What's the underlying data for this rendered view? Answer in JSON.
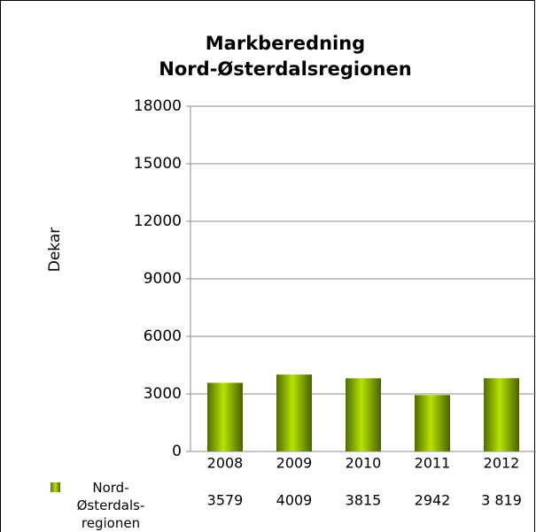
{
  "chart_data": {
    "type": "bar",
    "title": [
      "Markberedning",
      "Nord-Østerdalsregionen"
    ],
    "y_label": "Dekar",
    "categories": [
      "2008",
      "2009",
      "2010",
      "2011",
      "2012"
    ],
    "series": [
      {
        "name": "Nord-Østerdals-regionen",
        "color": "#8db600",
        "values": [
          3579,
          4009,
          3815,
          2942,
          3819
        ],
        "value_labels": [
          "3579",
          "4009",
          "3815",
          "2942",
          "3 819"
        ]
      }
    ],
    "ylim": [
      0,
      18000
    ],
    "yticks": [
      0,
      3000,
      6000,
      9000,
      12000,
      15000,
      18000
    ],
    "grid": true,
    "legend": "bottom-left"
  }
}
